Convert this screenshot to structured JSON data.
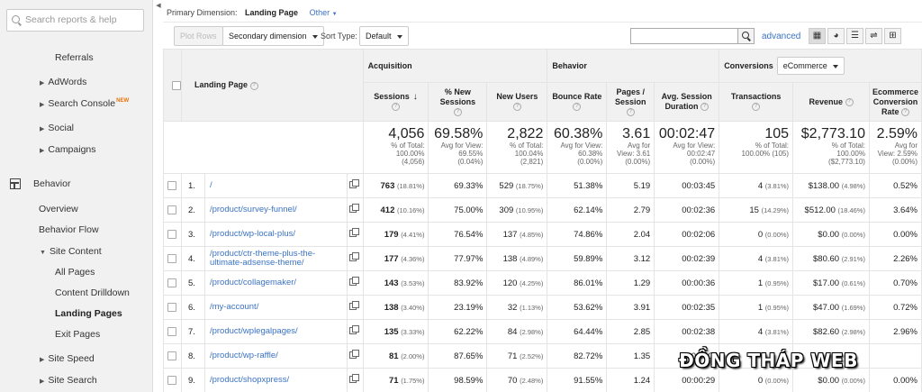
{
  "sidebar": {
    "search_placeholder": "Search reports & help",
    "items": [
      {
        "label": "Referrals"
      },
      {
        "label": "AdWords"
      },
      {
        "label": "Search Console",
        "badge": "NEW"
      },
      {
        "label": "Social"
      },
      {
        "label": "Campaigns"
      },
      {
        "label": "Behavior"
      },
      {
        "label": "Overview"
      },
      {
        "label": "Behavior Flow"
      },
      {
        "label": "Site Content"
      },
      {
        "label": "All Pages"
      },
      {
        "label": "Content Drilldown"
      },
      {
        "label": "Landing Pages"
      },
      {
        "label": "Exit Pages"
      },
      {
        "label": "Site Speed"
      },
      {
        "label": "Site Search"
      }
    ]
  },
  "header": {
    "primary_dimension_label": "Primary Dimension:",
    "primary_dimension_value": "Landing Page",
    "other_label": "Other"
  },
  "toolbar": {
    "plot_rows": "Plot Rows",
    "secondary_dimension": "Secondary dimension",
    "sort_type_label": "Sort Type:",
    "sort_type_value": "Default",
    "advanced": "advanced"
  },
  "table": {
    "group_headers": {
      "acquisition": "Acquisition",
      "behavior": "Behavior",
      "conversions": "Conversions",
      "conversions_select": "eCommerce"
    },
    "col_landing_page": "Landing Page",
    "columns": [
      {
        "l1": "Sessions",
        "l2": ""
      },
      {
        "l1": "% New",
        "l2": "Sessions"
      },
      {
        "l1": "New Users",
        "l2": ""
      },
      {
        "l1": "Bounce Rate",
        "l2": ""
      },
      {
        "l1": "Pages /",
        "l2": "Session"
      },
      {
        "l1": "Avg. Session",
        "l2": "Duration"
      },
      {
        "l1": "Transactions",
        "l2": ""
      },
      {
        "l1": "Revenue",
        "l2": ""
      },
      {
        "l1": "Ecommerce",
        "l2": "Conversion",
        "l3": "Rate"
      }
    ],
    "totals": [
      {
        "big": "4,056",
        "s1": "% of Total:",
        "s2": "100.00%",
        "s3": "(4,056)"
      },
      {
        "big": "69.58%",
        "s1": "Avg for View:",
        "s2": "69.55%",
        "s3": "(0.04%)"
      },
      {
        "big": "2,822",
        "s1": "% of Total:",
        "s2": "100.04%",
        "s3": "(2,821)"
      },
      {
        "big": "60.38%",
        "s1": "Avg for View:",
        "s2": "60.38%",
        "s3": "(0.00%)"
      },
      {
        "big": "3.61",
        "s1": "Avg for",
        "s2": "View: 3.61",
        "s3": "(0.00%)"
      },
      {
        "big": "00:02:47",
        "s1": "Avg for View:",
        "s2": "00:02:47",
        "s3": "(0.00%)"
      },
      {
        "big": "105",
        "s1": "% of Total:",
        "s2": "100.00% (105)",
        "s3": ""
      },
      {
        "big": "$2,773.10",
        "s1": "% of Total:",
        "s2": "100.00%",
        "s3": "($2,773.10)"
      },
      {
        "big": "2.59%",
        "s1": "Avg for",
        "s2": "View: 2.59%",
        "s3": "(0.00%)"
      }
    ],
    "rows": [
      {
        "idx": "1.",
        "page": "/",
        "sessions": "763",
        "sessions_pct": "(18.81%)",
        "new_sessions": "69.33%",
        "new_users": "529",
        "new_users_pct": "(18.75%)",
        "bounce": "51.38%",
        "pps": "5.19",
        "dur": "00:03:45",
        "trans": "4",
        "trans_pct": "(3.81%)",
        "rev": "$138.00",
        "rev_pct": "(4.98%)",
        "conv": "0.52%"
      },
      {
        "idx": "2.",
        "page": "/product/survey-funnel/",
        "sessions": "412",
        "sessions_pct": "(10.16%)",
        "new_sessions": "75.00%",
        "new_users": "309",
        "new_users_pct": "(10.95%)",
        "bounce": "62.14%",
        "pps": "2.79",
        "dur": "00:02:36",
        "trans": "15",
        "trans_pct": "(14.29%)",
        "rev": "$512.00",
        "rev_pct": "(18.46%)",
        "conv": "3.64%"
      },
      {
        "idx": "3.",
        "page": "/product/wp-local-plus/",
        "sessions": "179",
        "sessions_pct": "(4.41%)",
        "new_sessions": "76.54%",
        "new_users": "137",
        "new_users_pct": "(4.85%)",
        "bounce": "74.86%",
        "pps": "2.04",
        "dur": "00:02:06",
        "trans": "0",
        "trans_pct": "(0.00%)",
        "rev": "$0.00",
        "rev_pct": "(0.00%)",
        "conv": "0.00%"
      },
      {
        "idx": "4.",
        "page": "/product/ctr-theme-plus-the-ultimate-adsense-theme/",
        "sessions": "177",
        "sessions_pct": "(4.36%)",
        "new_sessions": "77.97%",
        "new_users": "138",
        "new_users_pct": "(4.89%)",
        "bounce": "59.89%",
        "pps": "3.12",
        "dur": "00:02:39",
        "trans": "4",
        "trans_pct": "(3.81%)",
        "rev": "$80.60",
        "rev_pct": "(2.91%)",
        "conv": "2.26%"
      },
      {
        "idx": "5.",
        "page": "/product/collagemaker/",
        "sessions": "143",
        "sessions_pct": "(3.53%)",
        "new_sessions": "83.92%",
        "new_users": "120",
        "new_users_pct": "(4.25%)",
        "bounce": "86.01%",
        "pps": "1.29",
        "dur": "00:00:36",
        "trans": "1",
        "trans_pct": "(0.95%)",
        "rev": "$17.00",
        "rev_pct": "(0.61%)",
        "conv": "0.70%"
      },
      {
        "idx": "6.",
        "page": "/my-account/",
        "sessions": "138",
        "sessions_pct": "(3.40%)",
        "new_sessions": "23.19%",
        "new_users": "32",
        "new_users_pct": "(1.13%)",
        "bounce": "53.62%",
        "pps": "3.91",
        "dur": "00:02:35",
        "trans": "1",
        "trans_pct": "(0.95%)",
        "rev": "$47.00",
        "rev_pct": "(1.69%)",
        "conv": "0.72%"
      },
      {
        "idx": "7.",
        "page": "/product/wplegalpages/",
        "sessions": "135",
        "sessions_pct": "(3.33%)",
        "new_sessions": "62.22%",
        "new_users": "84",
        "new_users_pct": "(2.98%)",
        "bounce": "64.44%",
        "pps": "2.85",
        "dur": "00:02:38",
        "trans": "4",
        "trans_pct": "(3.81%)",
        "rev": "$82.60",
        "rev_pct": "(2.98%)",
        "conv": "2.96%"
      },
      {
        "idx": "8.",
        "page": "/product/wp-raffle/",
        "sessions": "81",
        "sessions_pct": "(2.00%)",
        "new_sessions": "87.65%",
        "new_users": "71",
        "new_users_pct": "(2.52%)",
        "bounce": "82.72%",
        "pps": "1.35",
        "dur": "00:00:",
        "trans": "",
        "trans_pct": "",
        "rev": "",
        "rev_pct": "",
        "conv": ""
      },
      {
        "idx": "9.",
        "page": "/product/shopxpress/",
        "sessions": "71",
        "sessions_pct": "(1.75%)",
        "new_sessions": "98.59%",
        "new_users": "70",
        "new_users_pct": "(2.48%)",
        "bounce": "91.55%",
        "pps": "1.24",
        "dur": "00:00:29",
        "trans": "0",
        "trans_pct": "(0.00%)",
        "rev": "$0.00",
        "rev_pct": "(0.00%)",
        "conv": "0.00%"
      }
    ]
  },
  "watermark": "ĐỒNG THÁP WEB"
}
